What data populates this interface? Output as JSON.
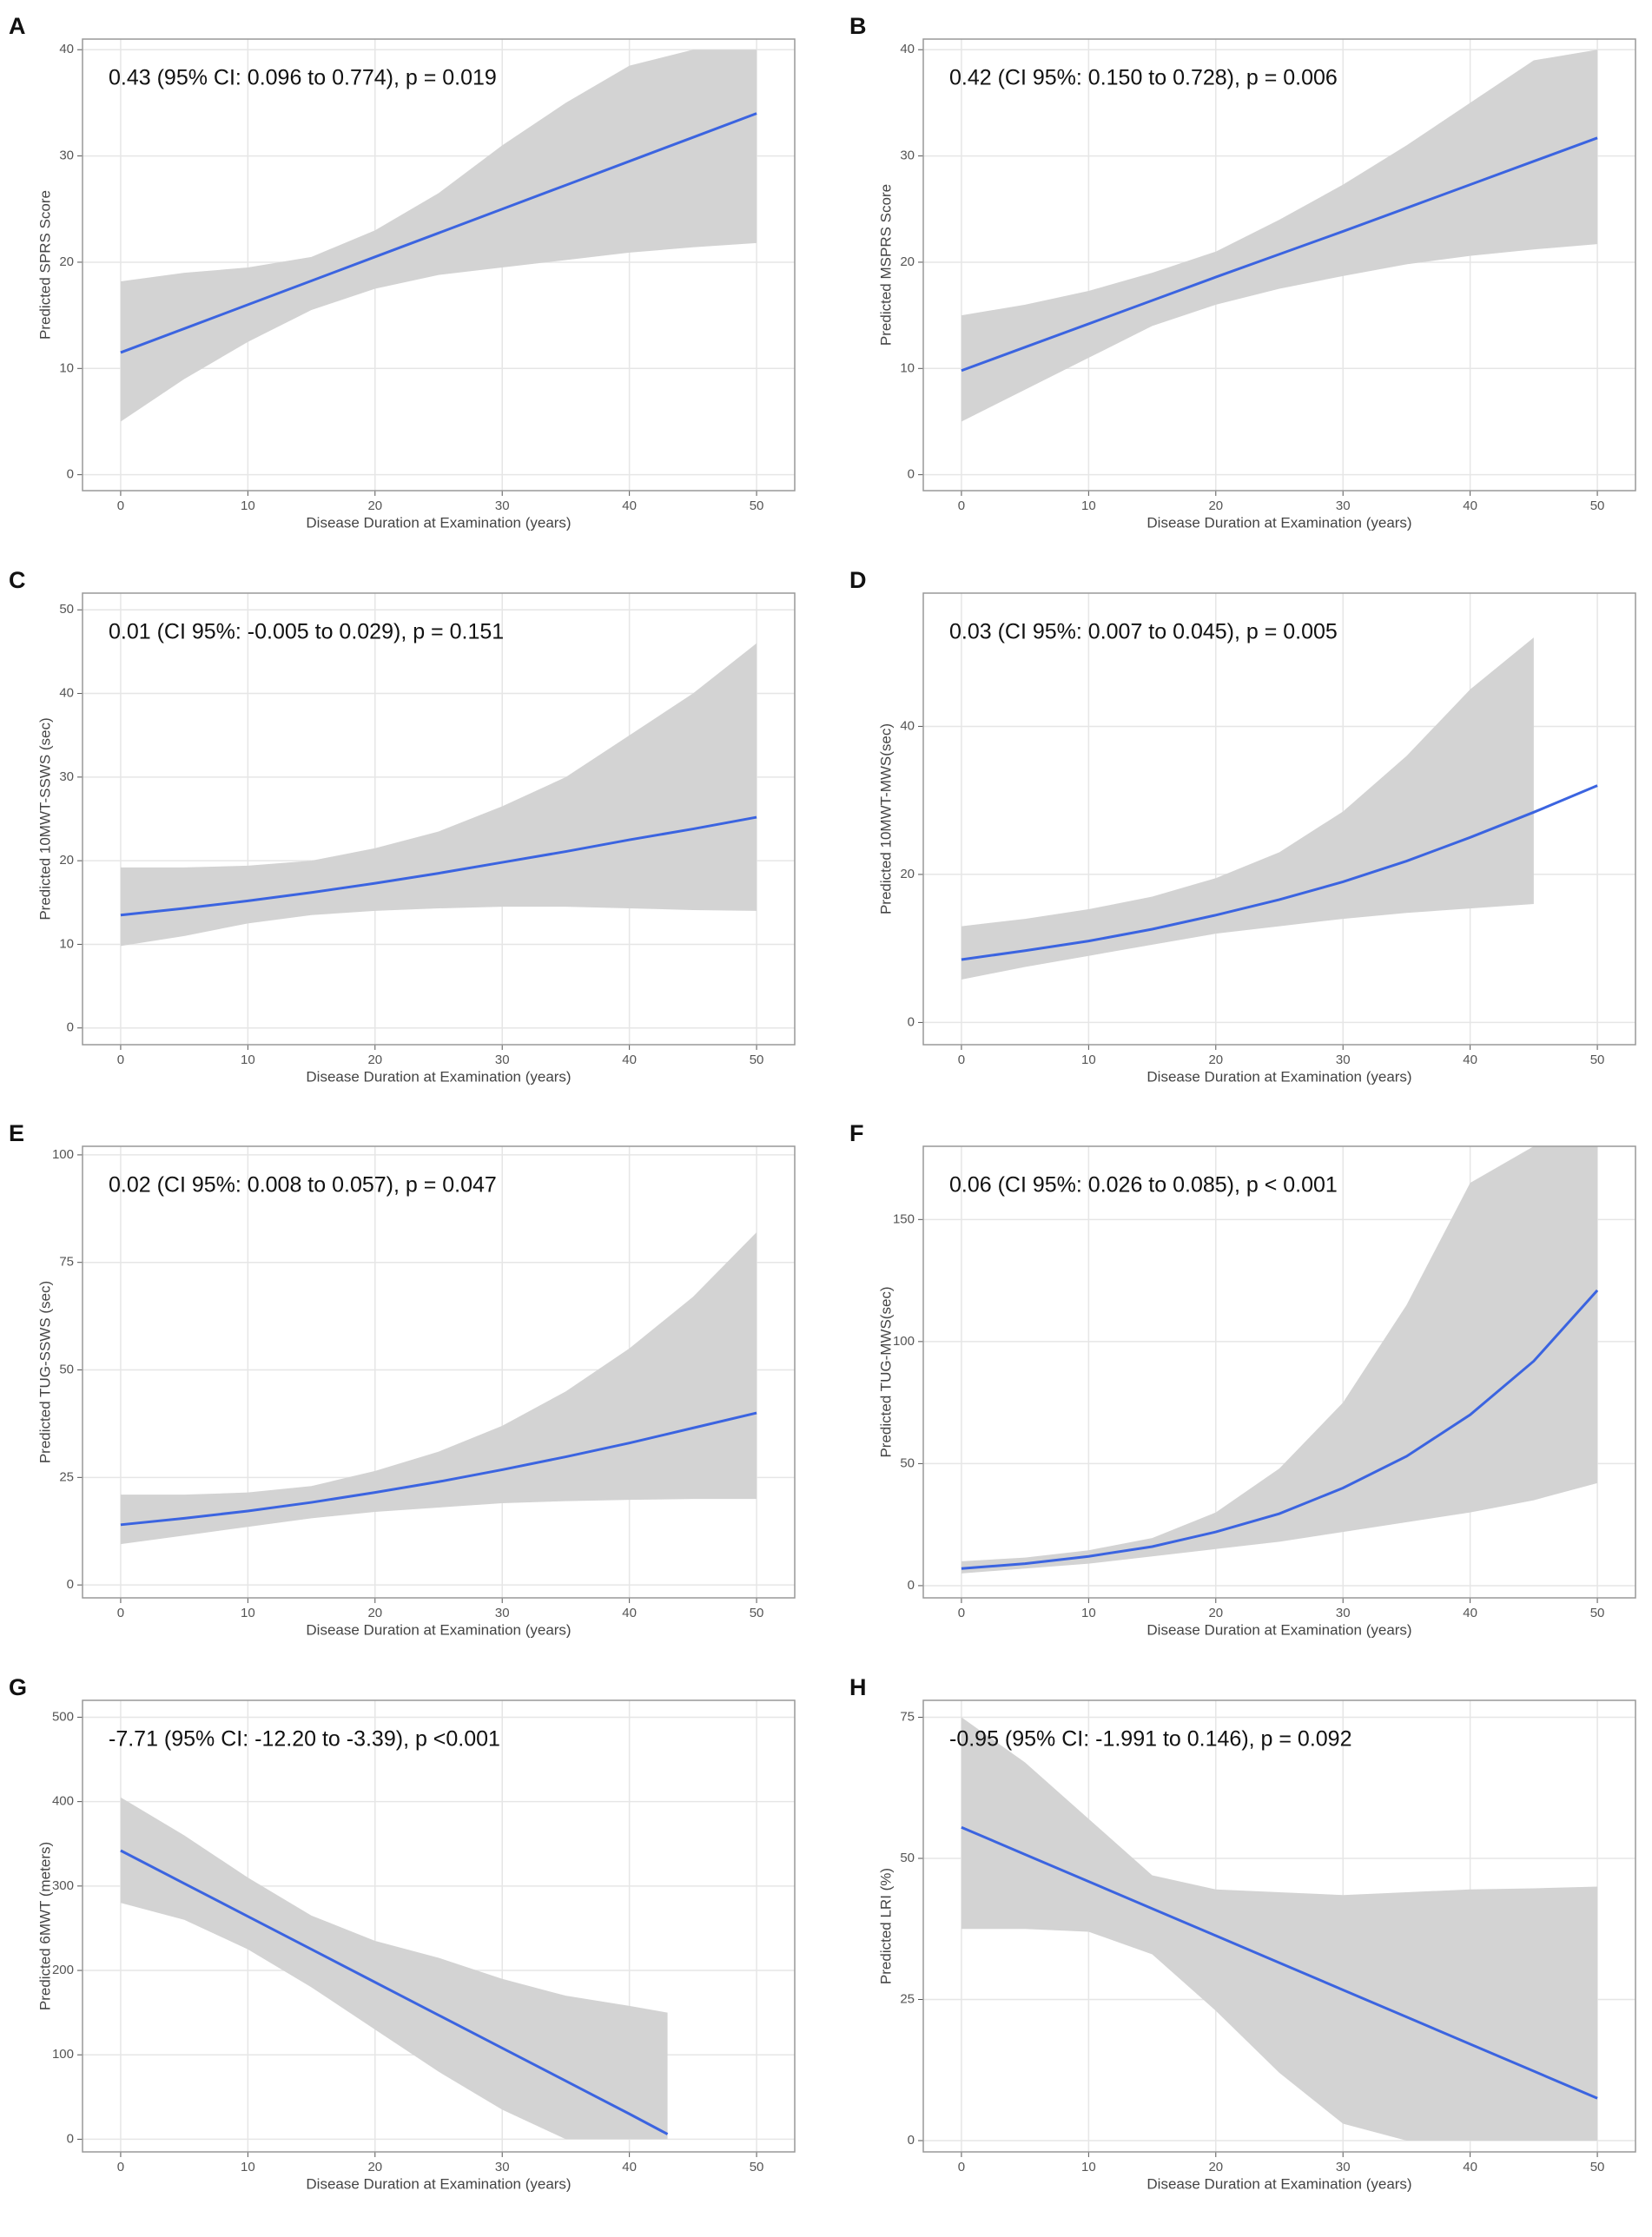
{
  "chart_data": [
    {
      "type": "line",
      "label": "A",
      "annotation": "0.43 (95% CI: 0.096 to 0.774), p = 0.019",
      "xlabel": "Disease Duration at Examination (years)",
      "ylabel": "Predicted SPRS Score",
      "x": [
        0,
        5,
        10,
        15,
        20,
        25,
        30,
        35,
        40,
        45,
        50
      ],
      "values": [
        11.5,
        13.75,
        16,
        18.25,
        20.5,
        22.75,
        25,
        27.25,
        29.5,
        31.75,
        34
      ],
      "lower": [
        5,
        9,
        12.5,
        15.5,
        17.5,
        18.8,
        19.5,
        20.2,
        20.9,
        21.4,
        21.8
      ],
      "upper": [
        18.2,
        19,
        19.5,
        20.5,
        23,
        26.5,
        31,
        35,
        38.5,
        40,
        40
      ],
      "color": "#3b64e0",
      "band_color": "#d3d3d3",
      "xlim": [
        -3,
        53
      ],
      "ylim": [
        -1.5,
        41
      ],
      "xticks": [
        0,
        10,
        20,
        30,
        40,
        50
      ],
      "yticks": [
        0,
        10,
        20,
        30,
        40
      ],
      "grid": true
    },
    {
      "type": "line",
      "label": "B",
      "annotation": "0.42 (CI 95%: 0.150 to 0.728), p = 0.006",
      "xlabel": "Disease Duration at Examination (years)",
      "ylabel": "Predicted MSPRS Score",
      "x": [
        0,
        5,
        10,
        15,
        20,
        25,
        30,
        35,
        40,
        45,
        50
      ],
      "values": [
        9.8,
        12,
        14.2,
        16.4,
        18.6,
        20.75,
        22.9,
        25.1,
        27.3,
        29.5,
        31.7
      ],
      "lower": [
        5,
        8,
        11,
        14,
        16,
        17.5,
        18.7,
        19.8,
        20.6,
        21.2,
        21.7
      ],
      "upper": [
        15,
        16,
        17.3,
        19,
        21,
        24,
        27.3,
        31,
        35,
        39,
        40
      ],
      "color": "#3b64e0",
      "band_color": "#d3d3d3",
      "xlim": [
        -3,
        53
      ],
      "ylim": [
        -1.5,
        41
      ],
      "xticks": [
        0,
        10,
        20,
        30,
        40,
        50
      ],
      "yticks": [
        0,
        10,
        20,
        30,
        40
      ],
      "grid": true
    },
    {
      "type": "line",
      "label": "C",
      "annotation": "0.01 (CI 95%: -0.005 to 0.029), p = 0.151",
      "xlabel": "Disease Duration at Examination (years)",
      "ylabel": "Predicted 10MWT-SSWS (sec)",
      "x": [
        0,
        5,
        10,
        15,
        20,
        25,
        30,
        35,
        40,
        45,
        50
      ],
      "values": [
        13.5,
        14.3,
        15.2,
        16.2,
        17.3,
        18.5,
        19.8,
        21.1,
        22.5,
        23.8,
        25.2
      ],
      "lower": [
        9.8,
        11,
        12.5,
        13.5,
        14,
        14.3,
        14.5,
        14.5,
        14.3,
        14.1,
        14
      ],
      "upper": [
        19.2,
        19.2,
        19.4,
        20,
        21.5,
        23.5,
        26.5,
        30,
        35,
        40,
        46
      ],
      "color": "#3b64e0",
      "band_color": "#d3d3d3",
      "xlim": [
        -3,
        53
      ],
      "ylim": [
        -2,
        52
      ],
      "xticks": [
        0,
        10,
        20,
        30,
        40,
        50
      ],
      "yticks": [
        0,
        10,
        20,
        30,
        40,
        50
      ],
      "grid": true
    },
    {
      "type": "line",
      "label": "D",
      "annotation": "0.03 (CI 95%: 0.007 to 0.045), p = 0.005",
      "xlabel": "Disease Duration at Examination (years)",
      "ylabel": "Predicted 10MWT-MWS(sec)",
      "x": [
        0,
        5,
        10,
        15,
        20,
        25,
        30,
        35,
        40,
        45,
        50
      ],
      "values": [
        8.5,
        9.7,
        11,
        12.6,
        14.5,
        16.6,
        19,
        21.8,
        25,
        28.4,
        32
      ],
      "lower": [
        5.8,
        7.5,
        9,
        10.5,
        12,
        13,
        14,
        14.8,
        15.4,
        16,
        null
      ],
      "upper": [
        13,
        14,
        15.3,
        17,
        19.5,
        23,
        28.5,
        36,
        45,
        52,
        null
      ],
      "color": "#3b64e0",
      "band_color": "#d3d3d3",
      "xlim": [
        -3,
        53
      ],
      "ylim": [
        -3,
        58
      ],
      "xticks": [
        0,
        10,
        20,
        30,
        40,
        50
      ],
      "yticks": [
        0,
        20,
        40
      ],
      "grid": true
    },
    {
      "type": "line",
      "label": "E",
      "annotation": "0.02 (CI 95%: 0.008 to 0.057), p = 0.047",
      "xlabel": "Disease Duration at Examination (years)",
      "ylabel": "Predicted TUG-SSWS (sec)",
      "x": [
        0,
        5,
        10,
        15,
        20,
        25,
        30,
        35,
        40,
        45,
        50
      ],
      "values": [
        14,
        15.5,
        17.2,
        19.2,
        21.5,
        24,
        26.8,
        29.8,
        33,
        36.5,
        40
      ],
      "lower": [
        9.5,
        11.5,
        13.5,
        15.5,
        17,
        18,
        19,
        19.5,
        19.8,
        20,
        20
      ],
      "upper": [
        21,
        21,
        21.5,
        23,
        26.5,
        31,
        37,
        45,
        55,
        67,
        82
      ],
      "color": "#3b64e0",
      "band_color": "#d3d3d3",
      "xlim": [
        -3,
        53
      ],
      "ylim": [
        -3,
        102
      ],
      "xticks": [
        0,
        10,
        20,
        30,
        40,
        50
      ],
      "yticks": [
        0,
        25,
        50,
        75,
        100
      ],
      "grid": true
    },
    {
      "type": "line",
      "label": "F",
      "annotation": "0.06 (CI 95%: 0.026 to 0.085), p < 0.001",
      "xlabel": "Disease Duration at Examination (years)",
      "ylabel": "Predicted TUG-MWS(sec)",
      "x": [
        0,
        5,
        10,
        15,
        20,
        25,
        30,
        35,
        40,
        45,
        50
      ],
      "values": [
        7,
        9,
        12,
        16,
        22,
        29.5,
        40,
        53,
        70,
        92,
        121
      ],
      "lower": [
        5,
        7,
        9,
        12,
        15,
        18,
        22,
        26,
        30,
        35,
        42
      ],
      "upper": [
        10,
        11.5,
        14.5,
        19.5,
        30,
        48,
        75,
        115,
        165,
        180,
        180
      ],
      "color": "#3b64e0",
      "band_color": "#d3d3d3",
      "xlim": [
        -3,
        53
      ],
      "ylim": [
        -5,
        180
      ],
      "xticks": [
        0,
        10,
        20,
        30,
        40,
        50
      ],
      "yticks": [
        0,
        50,
        100,
        150
      ],
      "grid": true
    },
    {
      "type": "line",
      "label": "G",
      "annotation": "-7.71 (95% CI: -12.20 to -3.39), p <0.001",
      "xlabel": "Disease Duration at Examination (years)",
      "ylabel": "Predicted 6MWT (meters)",
      "x": [
        0,
        5,
        10,
        15,
        20,
        25,
        30,
        35,
        40,
        43
      ],
      "values": [
        342,
        303,
        264,
        225,
        186,
        147,
        108,
        69,
        30,
        6
      ],
      "lower": [
        280,
        260,
        225,
        180,
        130,
        80,
        35,
        0,
        0,
        0
      ],
      "upper": [
        405,
        360,
        310,
        265,
        235,
        215,
        190,
        170,
        158,
        150
      ],
      "color": "#3b64e0",
      "band_color": "#d3d3d3",
      "xlim": [
        -3,
        53
      ],
      "ylim": [
        -15,
        520
      ],
      "xticks": [
        0,
        10,
        20,
        30,
        40,
        50
      ],
      "yticks": [
        0,
        100,
        200,
        300,
        400,
        500
      ],
      "grid": true
    },
    {
      "type": "line",
      "label": "H",
      "annotation": "-0.95 (95% CI: -1.991 to 0.146), p = 0.092",
      "xlabel": "Disease Duration at Examination (years)",
      "ylabel": "Predicted LRI (%)",
      "x": [
        0,
        5,
        10,
        15,
        20,
        25,
        30,
        35,
        40,
        45,
        50
      ],
      "values": [
        55.5,
        50.7,
        45.9,
        41.1,
        36.3,
        31.5,
        26.7,
        21.9,
        17.1,
        12.3,
        7.5
      ],
      "lower": [
        37.5,
        37.5,
        37,
        33,
        23,
        12,
        3,
        0,
        0,
        0,
        0
      ],
      "upper": [
        75,
        67,
        57,
        47,
        44.5,
        44,
        43.5,
        44,
        44.5,
        44.7,
        45
      ],
      "color": "#3b64e0",
      "band_color": "#d3d3d3",
      "xlim": [
        -3,
        53
      ],
      "ylim": [
        -2,
        78
      ],
      "xticks": [
        0,
        10,
        20,
        30,
        40,
        50
      ],
      "yticks": [
        0,
        25,
        50,
        75
      ],
      "grid": true
    }
  ]
}
